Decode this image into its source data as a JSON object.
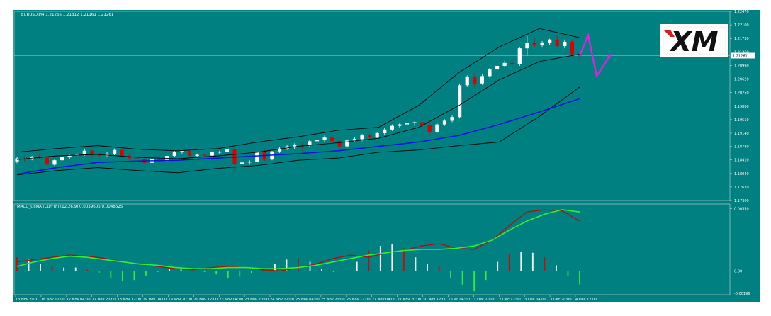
{
  "colors": {
    "background": "#008080",
    "frame": "#c8d8d8",
    "bull": "#ffffff",
    "bear": "#dd0000",
    "sma": "#1010e0",
    "bands": "#000000",
    "macd_line": "#aa1010",
    "signal_line": "#33ee33",
    "hist_pos": "#ffffff",
    "hist_neg_green": "#33ee33",
    "arrow": "#dd22dd",
    "text": "#ffffff"
  },
  "chart_data": [
    {
      "type": "candlestick",
      "panel": "price",
      "title": "EURUSD,H4  1.21265 1.21312 1.21161 1.21261",
      "ylim": [
        1.173,
        1.2247
      ],
      "y_ticks": [
        "1.22470",
        "1.22100",
        "1.21730",
        "1.21360",
        "1.20990",
        "1.20620",
        "1.20250",
        "1.19880",
        "1.19510",
        "1.19140",
        "1.18780",
        "1.18410",
        "1.18040",
        "1.17670",
        "1.17300"
      ],
      "current_price_label": "1.21261",
      "current_price": 1.2126,
      "candle_count": 68,
      "candles": [
        [
          1.1837,
          1.185,
          1.1832,
          1.1845
        ],
        [
          1.1845,
          1.1851,
          1.1836,
          1.1842
        ],
        [
          1.1842,
          1.1852,
          1.184,
          1.185
        ],
        [
          1.185,
          1.1858,
          1.1844,
          1.1848
        ],
        [
          1.1848,
          1.1849,
          1.1823,
          1.1828
        ],
        [
          1.1828,
          1.1842,
          1.1825,
          1.184
        ],
        [
          1.184,
          1.1852,
          1.1836,
          1.1848
        ],
        [
          1.1848,
          1.1857,
          1.1842,
          1.1853
        ],
        [
          1.1853,
          1.1862,
          1.1848,
          1.1856
        ],
        [
          1.1856,
          1.187,
          1.1852,
          1.1866
        ],
        [
          1.1866,
          1.1872,
          1.185,
          1.1855
        ],
        [
          1.1855,
          1.186,
          1.1849,
          1.1853
        ],
        [
          1.1853,
          1.1862,
          1.1848,
          1.1858
        ],
        [
          1.1858,
          1.1872,
          1.1854,
          1.1868
        ],
        [
          1.1868,
          1.187,
          1.1848,
          1.1852
        ],
        [
          1.1852,
          1.1858,
          1.1841,
          1.1845
        ],
        [
          1.1845,
          1.1852,
          1.1838,
          1.1843
        ],
        [
          1.1843,
          1.1846,
          1.183,
          1.1833
        ],
        [
          1.1833,
          1.1845,
          1.183,
          1.1843
        ],
        [
          1.1843,
          1.1848,
          1.1834,
          1.1838
        ],
        [
          1.1838,
          1.1854,
          1.1836,
          1.1852
        ],
        [
          1.1852,
          1.1866,
          1.1848,
          1.1862
        ],
        [
          1.1862,
          1.1868,
          1.1858,
          1.1865
        ],
        [
          1.1865,
          1.1868,
          1.1848,
          1.1852
        ],
        [
          1.1852,
          1.1858,
          1.1848,
          1.1855
        ],
        [
          1.1855,
          1.1858,
          1.1848,
          1.1853
        ],
        [
          1.1853,
          1.1864,
          1.185,
          1.1862
        ],
        [
          1.1862,
          1.1866,
          1.1857,
          1.1863
        ],
        [
          1.1863,
          1.1874,
          1.1858,
          1.187
        ],
        [
          1.187,
          1.1874,
          1.181,
          1.183
        ],
        [
          1.183,
          1.1838,
          1.1824,
          1.1834
        ],
        [
          1.1834,
          1.184,
          1.1828,
          1.1836
        ],
        [
          1.1836,
          1.1864,
          1.1834,
          1.1862
        ],
        [
          1.1862,
          1.1868,
          1.1838,
          1.1842
        ],
        [
          1.1842,
          1.1866,
          1.184,
          1.1864
        ],
        [
          1.1864,
          1.1876,
          1.186,
          1.1872
        ],
        [
          1.1872,
          1.1882,
          1.1868,
          1.1878
        ],
        [
          1.1878,
          1.1886,
          1.187,
          1.1882
        ],
        [
          1.1882,
          1.1888,
          1.1865,
          1.188
        ],
        [
          1.188,
          1.1896,
          1.1876,
          1.1892
        ],
        [
          1.1892,
          1.19,
          1.1886,
          1.1896
        ],
        [
          1.1896,
          1.1908,
          1.189,
          1.1902
        ],
        [
          1.1902,
          1.1906,
          1.1886,
          1.1892
        ],
        [
          1.1892,
          1.1896,
          1.1872,
          1.1878
        ],
        [
          1.1878,
          1.1898,
          1.1874,
          1.1894
        ],
        [
          1.1894,
          1.1902,
          1.189,
          1.1898
        ],
        [
          1.1898,
          1.1912,
          1.1892,
          1.1908
        ],
        [
          1.1908,
          1.1912,
          1.1898,
          1.1902
        ],
        [
          1.1902,
          1.1918,
          1.1898,
          1.1914
        ],
        [
          1.1914,
          1.1928,
          1.191,
          1.1924
        ],
        [
          1.1924,
          1.1938,
          1.192,
          1.1934
        ],
        [
          1.1934,
          1.1942,
          1.1928,
          1.1938
        ],
        [
          1.1938,
          1.1946,
          1.193,
          1.1942
        ],
        [
          1.1942,
          1.1946,
          1.1934,
          1.1944
        ],
        [
          1.1944,
          1.1982,
          1.19,
          1.1936
        ],
        [
          1.1936,
          1.194,
          1.191,
          1.1918
        ],
        [
          1.1918,
          1.1942,
          1.1914,
          1.1938
        ],
        [
          1.1938,
          1.1952,
          1.1934,
          1.1948
        ],
        [
          1.1948,
          1.1962,
          1.1944,
          1.1958
        ],
        [
          1.1958,
          1.205,
          1.1954,
          1.2045
        ],
        [
          1.2045,
          1.2072,
          1.204,
          1.2068
        ],
        [
          1.2068,
          1.2076,
          1.204,
          1.205
        ],
        [
          1.205,
          1.2076,
          1.2046,
          1.207
        ],
        [
          1.207,
          1.2092,
          1.2066,
          1.2088
        ],
        [
          1.2088,
          1.2104,
          1.2082,
          1.2098
        ],
        [
          1.2098,
          1.2112,
          1.2094,
          1.2106
        ],
        [
          1.2106,
          1.2114,
          1.2096,
          1.2102
        ],
        [
          1.2102,
          1.215,
          1.2098,
          1.2146
        ]
      ],
      "late_candles": [
        [
          1.2146,
          1.218,
          1.2126,
          1.216
        ],
        [
          1.216,
          1.2172,
          1.215,
          1.2155
        ],
        [
          1.2155,
          1.2166,
          1.215,
          1.2162
        ],
        [
          1.2162,
          1.2172,
          1.2156,
          1.217
        ],
        [
          1.217,
          1.218,
          1.215,
          1.2152
        ],
        [
          1.2152,
          1.217,
          1.2146,
          1.2164
        ],
        [
          1.2164,
          1.2168,
          1.2124,
          1.213
        ],
        [
          1.213,
          1.2132,
          1.2116,
          1.2126
        ]
      ],
      "sma": {
        "start": 1.1802,
        "points": [
          1.1802,
          1.182,
          1.1834,
          1.1838,
          1.184,
          1.1846,
          1.1852,
          1.1858,
          1.1866,
          1.1878,
          1.189,
          1.1908,
          1.1938,
          1.1972,
          1.2008
        ]
      },
      "upper_band": [
        1.1862,
        1.1872,
        1.188,
        1.187,
        1.1866,
        1.1872,
        1.189,
        1.1904,
        1.1922,
        1.193,
        1.199,
        1.208,
        1.215,
        1.22,
        1.2175
      ],
      "mid_band": [
        1.1842,
        1.1852,
        1.1856,
        1.1848,
        1.1844,
        1.1852,
        1.1862,
        1.1878,
        1.1888,
        1.19,
        1.193,
        1.199,
        1.206,
        1.211,
        1.213
      ],
      "lower_band": [
        1.18,
        1.1812,
        1.182,
        1.1812,
        1.1806,
        1.1818,
        1.1826,
        1.184,
        1.1846,
        1.1862,
        1.1868,
        1.188,
        1.189,
        1.196,
        1.204
      ],
      "forecast_arrow": [
        [
          1.2126,
          "start"
        ],
        [
          1.2182,
          "up"
        ],
        [
          1.207,
          "down"
        ],
        [
          1.213,
          "up"
        ]
      ]
    },
    {
      "type": "macd",
      "panel": "indicator",
      "title": "MACD_OsMA [CurrTF] (12,26,9) 0.0039605 0.0048625",
      "ylim": [
        -0.0021,
        0.0059
      ],
      "y_ticks": [
        "0.00550",
        "0.00",
        "-0.00196"
      ],
      "macd_line": [
        0.0008,
        0.001,
        0.0012,
        0.0014,
        0.0013,
        0.0011,
        0.0008,
        0.0006,
        0.0004,
        0.0002,
        0.0001,
        0.0003,
        0.0004,
        0.0003,
        0.0001,
        0.0,
        0.0003,
        0.0006,
        0.0011,
        0.0014,
        0.0012,
        0.0016,
        0.0018,
        0.0022,
        0.0024,
        0.002,
        0.0019,
        0.0027,
        0.004,
        0.0052,
        0.0054,
        0.0053,
        0.0044
      ],
      "signal_line": [
        0.0004,
        0.0008,
        0.0011,
        0.0013,
        0.0012,
        0.001,
        0.0008,
        0.0006,
        0.0005,
        0.0003,
        0.0002,
        0.0002,
        0.0003,
        0.0003,
        0.0002,
        0.0002,
        0.0003,
        0.0005,
        0.0008,
        0.0011,
        0.0014,
        0.0016,
        0.0018,
        0.0019,
        0.0019,
        0.002,
        0.0022,
        0.0027,
        0.0036,
        0.0044,
        0.005,
        0.0054,
        0.0052
      ],
      "histogram": [
        0.0012,
        0.001,
        0.0006,
        0.0004,
        0.0003,
        0.0003,
        0.0001,
        -0.0002,
        -0.0006,
        -0.0009,
        -0.0008,
        -0.0004,
        -0.0001,
        0.0002,
        0.0003,
        0.0001,
        -0.0001,
        -0.0003,
        -0.0006,
        -0.0005,
        -0.0002,
        0.0002,
        0.0006,
        0.001,
        0.0011,
        0.0008,
        0.0002,
        -0.0001,
        0.0,
        0.0008,
        0.0018,
        0.0022,
        0.0024,
        0.002,
        0.0012,
        0.0006,
        0.0004,
        -0.0006,
        -0.0012,
        -0.0018,
        -0.0008,
        0.0008,
        0.0015,
        0.0017,
        0.0016,
        0.0012,
        0.0005,
        -0.0004,
        -0.0012
      ],
      "zero_label": "0.00"
    }
  ],
  "x_axis": {
    "labels": [
      "13 Nov 2020",
      "16 Nov 12:00",
      "17 Nov 04:00",
      "17 Nov 20:00",
      "18 Nov 12:00",
      "19 Nov 04:00",
      "19 Nov 20:00",
      "20 Nov 12:00",
      "23 Nov 04:00",
      "23 Nov 20:00",
      "24 Nov 12:00",
      "25 Nov 04:00",
      "25 Nov 20:00",
      "26 Nov 12:00",
      "27 Nov 04:00",
      "27 Nov 20:00",
      "30 Nov 12:00",
      "1 Dec 04:00",
      "1 Dec 20:00",
      "2 Dec 12:00",
      "3 Dec 04:00",
      "3 Dec 20:00",
      "4 Dec 12:00"
    ]
  },
  "logo": {
    "text": "XM"
  }
}
